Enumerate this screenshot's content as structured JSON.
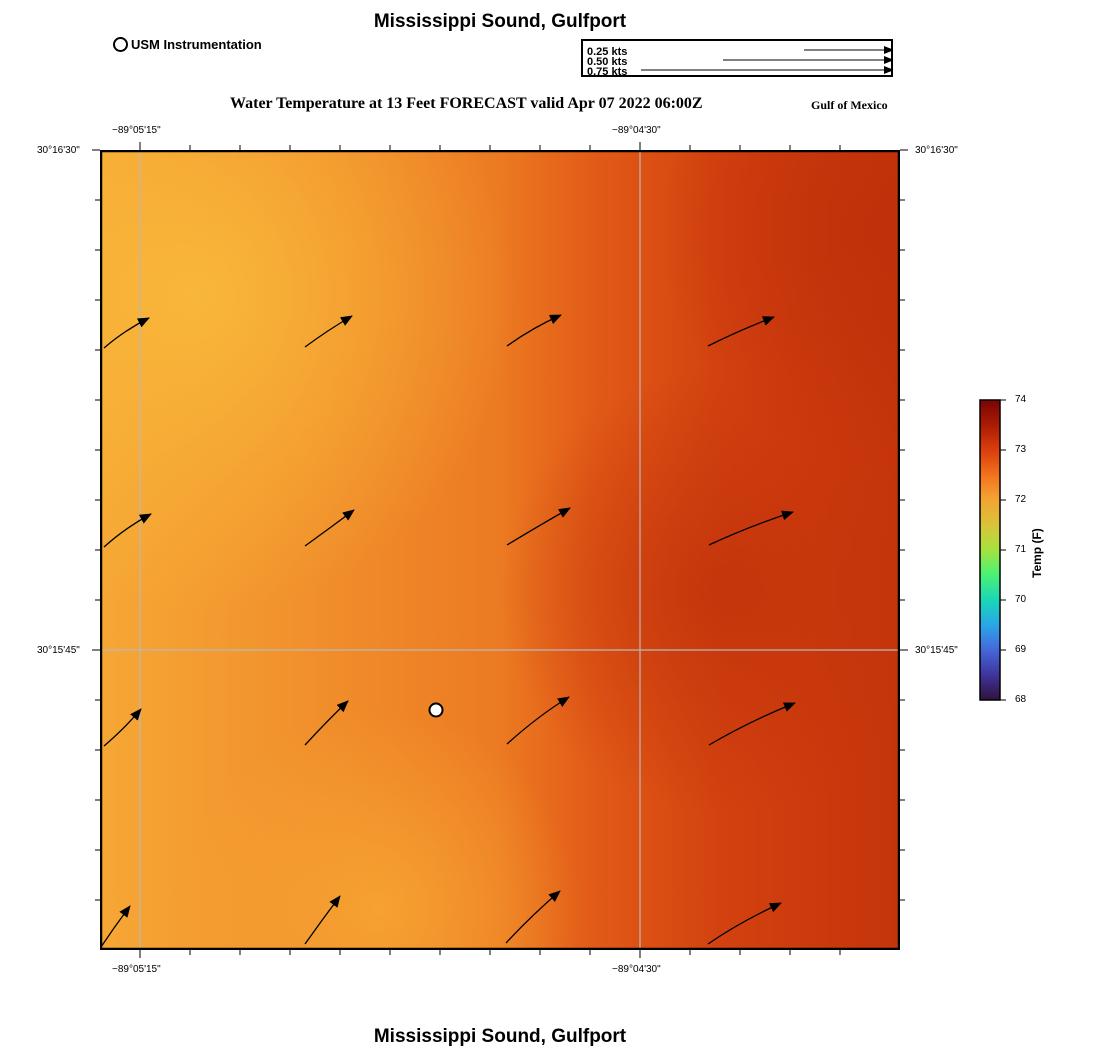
{
  "title_top": "Mississippi Sound, Gulfport",
  "title_bottom": "Mississippi Sound, Gulfport",
  "legend_station": "USM Instrumentation",
  "vector_legend": [
    "0.25 kts",
    "0.50 kts",
    "0.75 kts"
  ],
  "subtitle": "Water Temperature at 13 Feet FORECAST valid Apr 07 2022 06:00Z",
  "region_label": "Gulf of Mexico",
  "lon_ticks": [
    "−89°05'15\"",
    "−89°04'30\""
  ],
  "lat_ticks": [
    "30°16'30\"",
    "30°15'45\""
  ],
  "colorbar": {
    "label": "Temp (F)",
    "ticks": [
      "74",
      "73",
      "72",
      "71",
      "70",
      "69",
      "68"
    ],
    "min": 68,
    "max": 74
  },
  "colors": {
    "warm_light": "#f8b338",
    "warm_mid": "#ee7f24",
    "warm_dark": "#c7350b",
    "grid": "#b9b9b9"
  }
}
